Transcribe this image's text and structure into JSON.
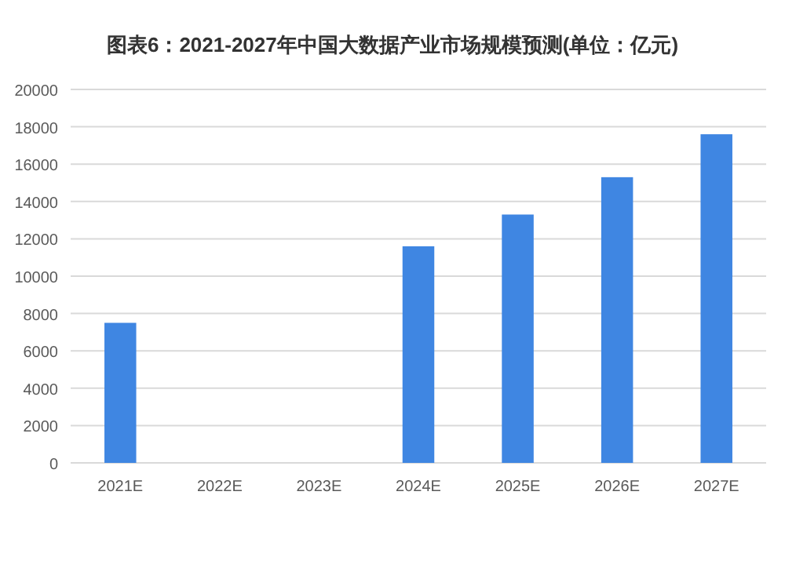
{
  "chart_data": {
    "type": "bar",
    "title": "图表6：2021-2027年中国大数据产业市场规模预测(单位：亿元)",
    "categories": [
      "2021E",
      "2022E",
      "2023E",
      "2024E",
      "2025E",
      "2026E",
      "2027E"
    ],
    "series": [
      {
        "color": "#3f86e2",
        "values": [
          7500,
          null,
          null,
          11600,
          13300,
          15300,
          17600
        ]
      }
    ],
    "ylim": [
      0,
      20000
    ],
    "yticks": [
      0,
      2000,
      4000,
      6000,
      8000,
      10000,
      12000,
      14000,
      16000,
      18000,
      20000
    ],
    "grid": "y"
  }
}
